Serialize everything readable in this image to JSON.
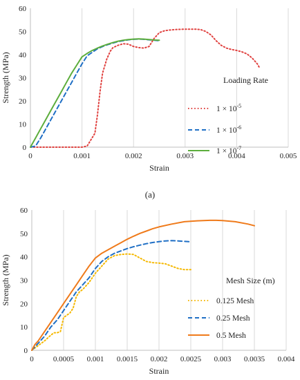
{
  "figure": {
    "panel_label": "(a)"
  },
  "chart_data": [
    {
      "type": "line",
      "xlabel": "Strain",
      "ylabel": "Strength (MPa)",
      "xlim": [
        0,
        0.005
      ],
      "ylim": [
        0,
        60
      ],
      "x_ticks": [
        0,
        0.001,
        0.002,
        0.003,
        0.004,
        0.005
      ],
      "x_tick_labels": [
        "0",
        "0.001",
        "0.002",
        "0.003",
        "0.004",
        "0.005"
      ],
      "y_ticks": [
        0,
        10,
        20,
        30,
        40,
        50,
        60
      ],
      "y_tick_labels": [
        "0",
        "10",
        "20",
        "30",
        "40",
        "50",
        "60"
      ],
      "grid": "vertical",
      "legend_title": "Loading Rate",
      "legend_position": "right",
      "series": [
        {
          "name": "1 × 10-5",
          "name_base": "1 × 10",
          "name_exp": "-5",
          "color": "#e0413f",
          "style": "dotted",
          "x": [
            0,
            0.0002,
            0.0005,
            0.0008,
            0.001,
            0.0011,
            0.00125,
            0.0013,
            0.00135,
            0.0014,
            0.00148,
            0.00155,
            0.0016,
            0.0017,
            0.0018,
            0.0019,
            0.002,
            0.0021,
            0.0022,
            0.0023,
            0.0024,
            0.0025,
            0.0026,
            0.0027,
            0.0028,
            0.003,
            0.0032,
            0.0033,
            0.0034,
            0.0035,
            0.0036,
            0.0037,
            0.0038,
            0.0039,
            0.004,
            0.0041,
            0.0042,
            0.0043,
            0.0044,
            0.00445
          ],
          "y": [
            0,
            0,
            0,
            0,
            0,
            0.5,
            6,
            14,
            24,
            32,
            38,
            41.5,
            43,
            44,
            44.7,
            44.5,
            43.5,
            43,
            42.8,
            43.5,
            47,
            49.5,
            50.3,
            50.6,
            50.8,
            51,
            51,
            50.8,
            50,
            48.5,
            46,
            44,
            42.8,
            42.2,
            41.8,
            41.2,
            40.3,
            38.5,
            36,
            34
          ]
        },
        {
          "name": "1 × 10-6",
          "name_base": "1 × 10",
          "name_exp": "-6",
          "color": "#1f6fc5",
          "style": "dashed",
          "x": [
            0,
            0.0001,
            0.0002,
            0.0003,
            0.0004,
            0.0005,
            0.0006,
            0.0007,
            0.0008,
            0.0009,
            0.001,
            0.0011,
            0.0012,
            0.0013,
            0.0014,
            0.0015,
            0.0016,
            0.0017,
            0.0018,
            0.0019,
            0.002,
            0.0021,
            0.0022,
            0.0023,
            0.0024,
            0.0025
          ],
          "y": [
            0,
            0.5,
            4,
            8,
            12,
            16,
            20,
            24,
            28,
            32,
            36,
            39.5,
            41,
            42.5,
            43.5,
            44.3,
            45,
            45.6,
            46,
            46.4,
            46.6,
            46.7,
            46.6,
            46.4,
            46.2,
            46
          ]
        },
        {
          "name": "1 × 10-7",
          "name_base": "1 × 10",
          "name_exp": "-7",
          "color": "#5cad3c",
          "style": "solid",
          "x": [
            0,
            0.0001,
            0.0002,
            0.0003,
            0.0004,
            0.0005,
            0.0006,
            0.0007,
            0.0008,
            0.0009,
            0.001,
            0.0011,
            0.0012,
            0.0013,
            0.0014,
            0.0015,
            0.0016,
            0.0017,
            0.0018,
            0.0019,
            0.002,
            0.0021,
            0.0022,
            0.0023,
            0.0024,
            0.0025
          ],
          "y": [
            0,
            4,
            8,
            12,
            16,
            20,
            24,
            28,
            32,
            35.5,
            39,
            40.5,
            41.8,
            42.8,
            43.7,
            44.5,
            45.2,
            45.8,
            46.2,
            46.5,
            46.7,
            46.8,
            46.7,
            46.5,
            46.3,
            46.2
          ]
        }
      ]
    },
    {
      "type": "line",
      "xlabel": "Strain",
      "ylabel": "Strength (MPa)",
      "xlim": [
        0,
        0.004
      ],
      "ylim": [
        0,
        60
      ],
      "x_ticks": [
        0,
        0.0005,
        0.001,
        0.0015,
        0.002,
        0.0025,
        0.003,
        0.0035,
        0.004
      ],
      "x_tick_labels": [
        "0",
        "0.0005",
        "0.001",
        "0.0015",
        "0.002",
        "0.0025",
        "0.003",
        "0.0035",
        "0.004"
      ],
      "y_ticks": [
        0,
        10,
        20,
        30,
        40,
        50,
        60
      ],
      "y_tick_labels": [
        "0",
        "10",
        "20",
        "30",
        "40",
        "50",
        "60"
      ],
      "grid": "vertical",
      "legend_title": "Mesh Size (m)",
      "legend_position": "right",
      "series": [
        {
          "name": "0.125 Mesh",
          "color": "#f5b800",
          "style": "dotted",
          "x": [
            0,
            0.0001,
            0.0002,
            0.0003,
            0.00035,
            0.0004,
            0.00045,
            0.0005,
            0.00055,
            0.0006,
            0.00065,
            0.0007,
            0.00075,
            0.0008,
            0.0009,
            0.001,
            0.0011,
            0.0012,
            0.0013,
            0.0014,
            0.0015,
            0.0016,
            0.0017,
            0.0018,
            0.0019,
            0.002,
            0.0021,
            0.0022,
            0.0023,
            0.0024,
            0.0025
          ],
          "y": [
            0,
            2,
            4,
            6.5,
            7.5,
            7.5,
            8,
            14,
            15,
            16,
            18,
            23,
            25,
            26,
            29,
            33,
            36,
            39,
            40.5,
            41,
            41.2,
            41,
            39.5,
            38,
            37.5,
            37.3,
            37,
            36,
            35,
            34.5,
            34.5
          ]
        },
        {
          "name": "0.25 Mesh",
          "color": "#1f6fc5",
          "style": "dashed",
          "x": [
            0,
            0.0001,
            0.0002,
            0.0003,
            0.0004,
            0.0005,
            0.0006,
            0.0007,
            0.0008,
            0.0009,
            0.001,
            0.0011,
            0.0012,
            0.0013,
            0.0014,
            0.0015,
            0.0016,
            0.0017,
            0.0018,
            0.0019,
            0.002,
            0.0021,
            0.0022,
            0.0023,
            0.0024,
            0.0025
          ],
          "y": [
            0,
            3,
            6,
            10,
            13,
            17,
            21,
            25,
            28,
            31,
            35,
            38,
            40,
            41.5,
            42.5,
            43.5,
            44.3,
            45,
            45.6,
            46.1,
            46.5,
            46.8,
            46.9,
            46.8,
            46.6,
            46.4
          ]
        },
        {
          "name": "0.5 Mesh",
          "color": "#ef7a1a",
          "style": "solid",
          "x": [
            0,
            5e-05,
            0.0001,
            0.0002,
            0.0003,
            0.0004,
            0.0005,
            0.0006,
            0.0007,
            0.0008,
            0.0009,
            0.001,
            0.0011,
            0.0012,
            0.0013,
            0.0014,
            0.0015,
            0.0016,
            0.0017,
            0.0018,
            0.0019,
            0.002,
            0.0022,
            0.0024,
            0.0026,
            0.0028,
            0.0029,
            0.003,
            0.0032,
            0.0034,
            0.0035
          ],
          "y": [
            0,
            2.5,
            4,
            8,
            12,
            16,
            20,
            24,
            28,
            32,
            36,
            39.5,
            41.5,
            43,
            44.5,
            46,
            47.5,
            48.8,
            50,
            51,
            52,
            52.8,
            54,
            55,
            55.4,
            55.6,
            55.6,
            55.5,
            55,
            54,
            53.3
          ]
        }
      ]
    }
  ]
}
